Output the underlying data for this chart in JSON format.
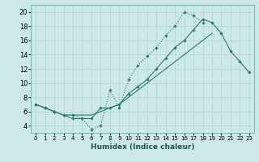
{
  "xlabel": "Humidex (Indice chaleur)",
  "bg_color": "#cce8e8",
  "grid_color": "#b0d4d4",
  "line_color": "#2a7a6a",
  "xlim": [
    -0.5,
    23.5
  ],
  "ylim": [
    3.0,
    21.0
  ],
  "xticks": [
    0,
    1,
    2,
    3,
    4,
    5,
    6,
    7,
    8,
    9,
    10,
    11,
    12,
    13,
    14,
    15,
    16,
    17,
    18,
    19,
    20,
    21,
    22,
    23
  ],
  "yticks": [
    4,
    6,
    8,
    10,
    12,
    14,
    16,
    18,
    20
  ],
  "line1_y": [
    7,
    6.5,
    6,
    5.5,
    5.5,
    5,
    3.5,
    4,
    9,
    6.5,
    10.5,
    12.5,
    13.8,
    15,
    16.7,
    18,
    20,
    19.5,
    18.5,
    null,
    null,
    null,
    null,
    null
  ],
  "line2_y": [
    7,
    6.5,
    6,
    5.5,
    5.5,
    5.5,
    5.5,
    6.0,
    6.5,
    7.0,
    8.0,
    9.0,
    10.0,
    11.0,
    12.0,
    13.0,
    14.0,
    15.0,
    16.0,
    17.0,
    null,
    null,
    null,
    null
  ],
  "line3_y": [
    7,
    6.5,
    6,
    5.5,
    5,
    5,
    5,
    6.5,
    6.5,
    7,
    8.5,
    9.5,
    10.5,
    12,
    13.5,
    15,
    16,
    17.5,
    19,
    18.5,
    17,
    14.5,
    13,
    11.5
  ]
}
